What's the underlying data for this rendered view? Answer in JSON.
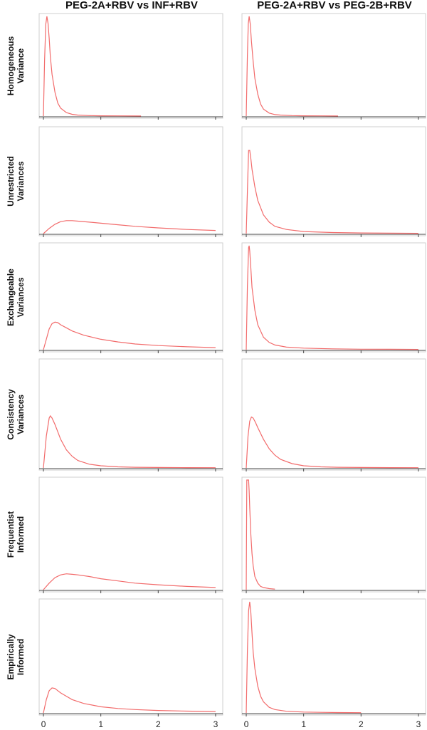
{
  "colors": {
    "curve": "#f26b6b",
    "frame": "#cfcfcf",
    "axis": "#444444"
  },
  "chart_data": {
    "type": "line",
    "layout": "grid",
    "grid": false,
    "columns": [
      "PEG-2A+RBV vs INF+RBV",
      "PEG-2A+RBV vs PEG-2B+RBV"
    ],
    "rows": [
      [
        "Homogeneous",
        "Variance"
      ],
      [
        "Unrestricted",
        "Variances"
      ],
      [
        "Exchangeable",
        "Variances"
      ],
      [
        "Consistency",
        "Variances"
      ],
      [
        "Frequentist",
        "Informed"
      ],
      [
        "Empirically",
        "Informed"
      ]
    ],
    "xlim": [
      -0.05,
      3.1
    ],
    "x_ticks": [
      0,
      1,
      2,
      3
    ],
    "x_tick_labels": [
      "0",
      "1",
      "2",
      "3"
    ],
    "panels": [
      [
        {
          "x": [
            0.0,
            0.02,
            0.04,
            0.06,
            0.08,
            0.1,
            0.12,
            0.15,
            0.2,
            0.25,
            0.3,
            0.4,
            0.5,
            0.6,
            0.8,
            1.0,
            1.3,
            1.7
          ],
          "y": [
            0.0,
            0.55,
            0.92,
            1.0,
            0.93,
            0.78,
            0.6,
            0.42,
            0.24,
            0.13,
            0.08,
            0.035,
            0.018,
            0.01,
            0.005,
            0.003,
            0.002,
            0.001
          ]
        },
        {
          "x": [
            0.0,
            0.02,
            0.035,
            0.05,
            0.07,
            0.09,
            0.12,
            0.15,
            0.2,
            0.25,
            0.3,
            0.4,
            0.5,
            0.6,
            0.8,
            1.0,
            1.3,
            1.6
          ],
          "y": [
            0.0,
            0.6,
            0.93,
            1.0,
            0.92,
            0.75,
            0.55,
            0.38,
            0.22,
            0.12,
            0.07,
            0.03,
            0.015,
            0.01,
            0.005,
            0.003,
            0.002,
            0.001
          ]
        }
      ],
      [
        {
          "x": [
            0.0,
            0.1,
            0.2,
            0.3,
            0.4,
            0.5,
            0.6,
            0.8,
            1.0,
            1.3,
            1.6,
            2.0,
            2.5,
            3.0
          ],
          "y": [
            0.0,
            0.05,
            0.09,
            0.115,
            0.125,
            0.125,
            0.12,
            0.11,
            0.1,
            0.085,
            0.07,
            0.055,
            0.04,
            0.03
          ]
        },
        {
          "x": [
            0.0,
            0.02,
            0.04,
            0.06,
            0.08,
            0.1,
            0.15,
            0.2,
            0.3,
            0.4,
            0.5,
            0.7,
            1.0,
            1.5,
            2.0,
            2.5,
            3.0
          ],
          "y": [
            0.0,
            0.4,
            0.8,
            0.8,
            0.72,
            0.62,
            0.45,
            0.32,
            0.18,
            0.11,
            0.07,
            0.04,
            0.02,
            0.01,
            0.006,
            0.004,
            0.003
          ]
        }
      ],
      [
        {
          "x": [
            0.0,
            0.05,
            0.1,
            0.15,
            0.2,
            0.25,
            0.3,
            0.4,
            0.5,
            0.7,
            1.0,
            1.3,
            1.6,
            2.0,
            2.5,
            3.0
          ],
          "y": [
            0.0,
            0.1,
            0.2,
            0.25,
            0.265,
            0.26,
            0.24,
            0.21,
            0.18,
            0.14,
            0.1,
            0.075,
            0.055,
            0.04,
            0.028,
            0.02
          ]
        },
        {
          "x": [
            0.0,
            0.02,
            0.04,
            0.05,
            0.06,
            0.08,
            0.1,
            0.15,
            0.2,
            0.3,
            0.4,
            0.5,
            0.7,
            1.0,
            1.5,
            2.0,
            2.5,
            3.0
          ],
          "y": [
            0.0,
            0.6,
            0.98,
            1.0,
            0.95,
            0.78,
            0.6,
            0.38,
            0.24,
            0.12,
            0.07,
            0.045,
            0.025,
            0.015,
            0.008,
            0.005,
            0.004,
            0.003
          ]
        }
      ],
      [
        {
          "x": [
            0.0,
            0.05,
            0.1,
            0.12,
            0.15,
            0.2,
            0.25,
            0.3,
            0.4,
            0.5,
            0.6,
            0.8,
            1.0,
            1.3,
            1.6,
            2.0,
            2.5,
            3.0
          ],
          "y": [
            0.0,
            0.3,
            0.47,
            0.49,
            0.47,
            0.41,
            0.34,
            0.27,
            0.17,
            0.11,
            0.07,
            0.035,
            0.02,
            0.01,
            0.006,
            0.004,
            0.003,
            0.002
          ]
        },
        {
          "x": [
            0.0,
            0.03,
            0.06,
            0.09,
            0.12,
            0.16,
            0.2,
            0.3,
            0.4,
            0.5,
            0.6,
            0.8,
            1.0,
            1.3,
            1.6,
            2.0,
            2.5,
            3.0
          ],
          "y": [
            0.0,
            0.3,
            0.44,
            0.48,
            0.47,
            0.43,
            0.38,
            0.27,
            0.18,
            0.12,
            0.08,
            0.04,
            0.02,
            0.01,
            0.006,
            0.004,
            0.003,
            0.002
          ]
        }
      ],
      [
        {
          "x": [
            0.0,
            0.1,
            0.2,
            0.3,
            0.4,
            0.5,
            0.6,
            0.8,
            1.0,
            1.3,
            1.6,
            2.0,
            2.5,
            3.0
          ],
          "y": [
            0.0,
            0.06,
            0.11,
            0.135,
            0.145,
            0.14,
            0.135,
            0.12,
            0.1,
            0.08,
            0.06,
            0.045,
            0.03,
            0.02
          ]
        },
        {
          "x": [
            0.0,
            0.01,
            0.02,
            0.03,
            0.04,
            0.05,
            0.06,
            0.08,
            0.1,
            0.12,
            0.15,
            0.2,
            0.25,
            0.3,
            0.4,
            0.5
          ],
          "y": [
            0.0,
            1.0,
            1.0,
            1.0,
            1.0,
            0.9,
            0.75,
            0.5,
            0.33,
            0.22,
            0.12,
            0.06,
            0.03,
            0.02,
            0.01,
            0.005
          ]
        }
      ],
      [
        {
          "x": [
            0.0,
            0.05,
            0.1,
            0.15,
            0.2,
            0.25,
            0.3,
            0.4,
            0.5,
            0.7,
            1.0,
            1.3,
            1.6,
            2.0,
            2.5,
            3.0
          ],
          "y": [
            0.0,
            0.12,
            0.2,
            0.225,
            0.22,
            0.2,
            0.18,
            0.15,
            0.12,
            0.085,
            0.055,
            0.04,
            0.03,
            0.022,
            0.016,
            0.012
          ]
        },
        {
          "x": [
            0.0,
            0.02,
            0.04,
            0.06,
            0.08,
            0.1,
            0.12,
            0.15,
            0.2,
            0.25,
            0.3,
            0.4,
            0.5,
            0.7,
            1.0,
            1.3,
            1.6,
            2.0
          ],
          "y": [
            0.0,
            0.55,
            0.92,
            1.0,
            0.9,
            0.72,
            0.55,
            0.4,
            0.24,
            0.15,
            0.1,
            0.05,
            0.03,
            0.015,
            0.008,
            0.005,
            0.003,
            0.002
          ]
        }
      ]
    ]
  }
}
